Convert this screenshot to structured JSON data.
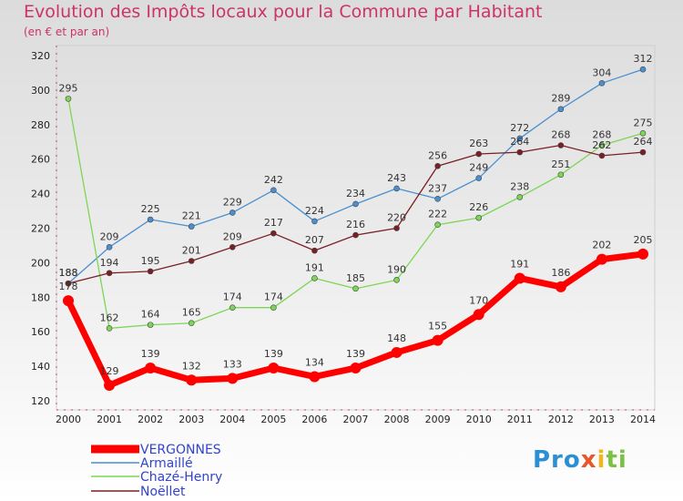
{
  "title": "Evolution des Impôts locaux pour la Commune par Habitant",
  "subtitle": "(en € et par an)",
  "logo_text": "Proxiti",
  "chart_data": {
    "type": "line",
    "title": "Evolution des Impôts locaux pour la Commune par Habitant",
    "subtitle": "(en € et par an)",
    "xlabel": "",
    "ylabel": "",
    "x": [
      "2000",
      "2001",
      "2002",
      "2003",
      "2004",
      "2005",
      "2006",
      "2007",
      "2008",
      "2009",
      "2010",
      "2011",
      "2012",
      "2013",
      "2014"
    ],
    "ylim": [
      120,
      320
    ],
    "yticks": [
      120,
      140,
      160,
      180,
      200,
      220,
      240,
      260,
      280,
      300,
      320
    ],
    "series": [
      {
        "name": "VERGONNES",
        "color": "#ff0000",
        "values": [
          178,
          129,
          139,
          132,
          133,
          139,
          134,
          139,
          148,
          155,
          170,
          191,
          186,
          202,
          205
        ]
      },
      {
        "name": "Armaillé",
        "color": "#4b8fd0",
        "values": [
          188,
          209,
          225,
          221,
          229,
          242,
          224,
          234,
          243,
          237,
          249,
          272,
          289,
          304,
          312
        ]
      },
      {
        "name": "Chazé-Henry",
        "color": "#7dd657",
        "values": [
          295,
          162,
          164,
          165,
          174,
          174,
          191,
          185,
          190,
          222,
          226,
          238,
          251,
          268,
          275
        ]
      },
      {
        "name": "Noëllet",
        "color": "#7a1f24",
        "values": [
          188,
          194,
          195,
          201,
          209,
          217,
          207,
          216,
          220,
          256,
          263,
          264,
          268,
          262,
          264
        ]
      }
    ],
    "legend_position": "bottom-left",
    "grid": false
  }
}
